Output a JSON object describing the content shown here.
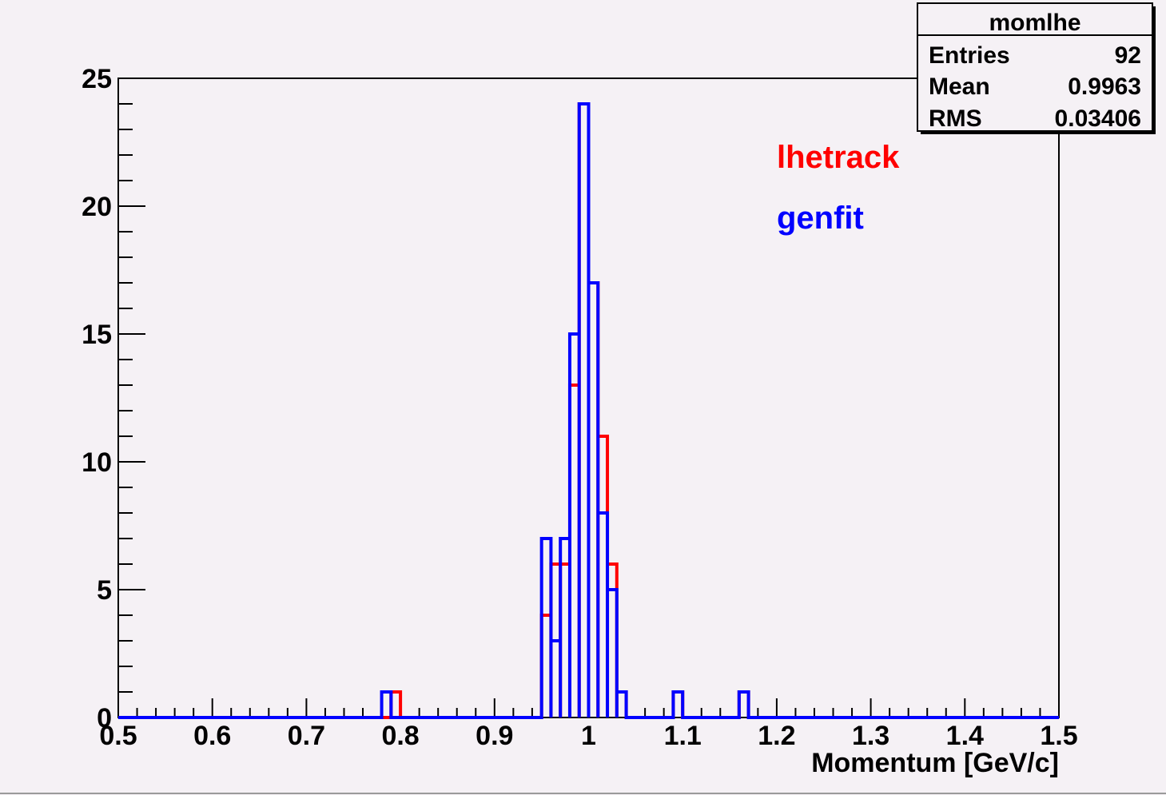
{
  "chart_data": {
    "type": "bar",
    "title": "",
    "xlabel": "Momentum [GeV/c]",
    "ylabel": "",
    "xlim": [
      0.5,
      1.5
    ],
    "ylim": [
      0,
      25
    ],
    "grid": false,
    "bin_width": 0.01,
    "x_ticks": [
      "0.5",
      "0.6",
      "0.7",
      "0.8",
      "0.9",
      "1",
      "1.1",
      "1.2",
      "1.3",
      "1.4",
      "1.5"
    ],
    "y_ticks": [
      "0",
      "5",
      "10",
      "15",
      "20",
      "25"
    ],
    "legend": [
      {
        "label": "lhetrack",
        "color": "#ff0000"
      },
      {
        "label": "genfit",
        "color": "#0000ff"
      }
    ],
    "stats_box": {
      "title": "momlhe",
      "rows": [
        {
          "label": "Entries",
          "value": "92"
        },
        {
          "label": "Mean",
          "value": "0.9963"
        },
        {
          "label": "RMS",
          "value": "0.03406"
        }
      ]
    },
    "series": [
      {
        "name": "lhetrack",
        "color": "#ff0000",
        "bins": [
          {
            "x": 0.79,
            "y": 1
          },
          {
            "x": 0.95,
            "y": 4
          },
          {
            "x": 0.96,
            "y": 6
          },
          {
            "x": 0.97,
            "y": 6
          },
          {
            "x": 0.98,
            "y": 13
          },
          {
            "x": 0.99,
            "y": 24
          },
          {
            "x": 1.0,
            "y": 17
          },
          {
            "x": 1.01,
            "y": 11
          },
          {
            "x": 1.02,
            "y": 6
          },
          {
            "x": 1.03,
            "y": 1
          },
          {
            "x": 1.09,
            "y": 1
          },
          {
            "x": 1.16,
            "y": 1
          }
        ]
      },
      {
        "name": "genfit",
        "color": "#0000ff",
        "bins": [
          {
            "x": 0.78,
            "y": 1
          },
          {
            "x": 0.95,
            "y": 7
          },
          {
            "x": 0.96,
            "y": 3
          },
          {
            "x": 0.97,
            "y": 7
          },
          {
            "x": 0.98,
            "y": 15
          },
          {
            "x": 0.99,
            "y": 24
          },
          {
            "x": 1.0,
            "y": 17
          },
          {
            "x": 1.01,
            "y": 8
          },
          {
            "x": 1.02,
            "y": 5
          },
          {
            "x": 1.03,
            "y": 1
          },
          {
            "x": 1.09,
            "y": 1
          },
          {
            "x": 1.16,
            "y": 1
          }
        ]
      }
    ]
  }
}
